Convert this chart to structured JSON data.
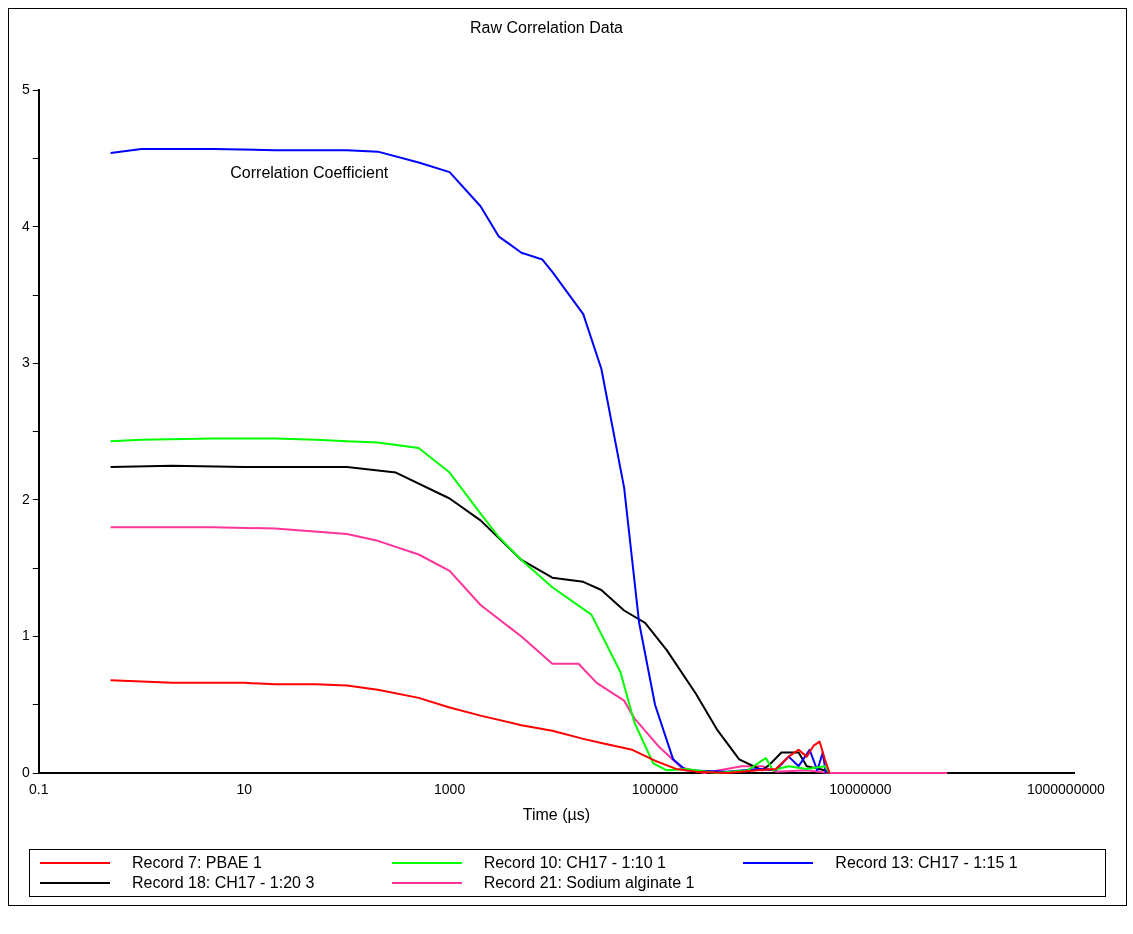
{
  "chart_data": {
    "type": "line",
    "title": "Raw Correlation Data",
    "xlabel": "Time (µs)",
    "ylabel": "Correlation Coefficient",
    "log": "x",
    "xlim": [
      0.1,
      1200000000
    ],
    "xticks": [
      0.1,
      10,
      1000,
      100000,
      10000000,
      1000000000
    ],
    "ylim": [
      0,
      5
    ],
    "yticks": [
      0,
      {
        "value": 0.5,
        "label": null
      },
      1,
      {
        "value": 1.5,
        "label": null
      },
      2,
      {
        "value": 2.5,
        "label": null
      },
      3,
      {
        "value": 3.5,
        "label": null
      },
      4,
      {
        "value": 4.5,
        "label": null
      },
      5
    ],
    "grid": false,
    "legend": "bottom",
    "marker": "none",
    "line_style": "solid",
    "series": [
      {
        "name": "Record 7: PBAE  1",
        "color": "#ff0000",
        "x": [
          0.5,
          1,
          2,
          5,
          10,
          20,
          50,
          100,
          200,
          500,
          1000,
          2000,
          5000,
          10000,
          20000,
          30000,
          60000,
          100000,
          160000,
          250000,
          500000,
          1000000,
          1500000,
          2000000,
          2500000,
          3000000,
          3500000,
          4000000,
          4500000,
          5000000
        ],
        "values": [
          0.68,
          0.67,
          0.66,
          0.66,
          0.66,
          0.65,
          0.65,
          0.64,
          0.61,
          0.55,
          0.48,
          0.42,
          0.35,
          0.31,
          0.25,
          0.22,
          0.17,
          0.09,
          0.03,
          0.01,
          0,
          0.02,
          0.03,
          0.12,
          0.17,
          0.12,
          0.2,
          0.23,
          0.1,
          0
        ]
      },
      {
        "name": "Record 10: CH17 - 1:10 1",
        "color": "#00ff00",
        "x": [
          0.5,
          1,
          5,
          20,
          50,
          100,
          200,
          500,
          1000,
          2000,
          3000,
          5000,
          10000,
          24000,
          46000,
          63000,
          96000,
          130000,
          200000,
          400000,
          800000,
          1200000,
          1400000,
          2000000,
          3000000,
          4500000,
          5000000
        ],
        "values": [
          2.43,
          2.44,
          2.45,
          2.45,
          2.44,
          2.43,
          2.42,
          2.38,
          2.2,
          1.9,
          1.73,
          1.56,
          1.36,
          1.16,
          0.74,
          0.37,
          0.07,
          0.02,
          0.03,
          0,
          0.02,
          0.11,
          0.02,
          0.05,
          0.03,
          0.05,
          0
        ]
      },
      {
        "name": "Record 13: CH17 - 1:15 1",
        "color": "#0000ff",
        "x": [
          0.5,
          1,
          5,
          20,
          100,
          200,
          500,
          1000,
          2000,
          3000,
          5000,
          8000,
          10000,
          20000,
          30000,
          50000,
          70000,
          100000,
          150000,
          200000,
          500000,
          1000000,
          1500000,
          2000000,
          2500000,
          3200000,
          3800000,
          4300000,
          4600000
        ],
        "values": [
          4.54,
          4.57,
          4.57,
          4.56,
          4.56,
          4.55,
          4.47,
          4.4,
          4.15,
          3.93,
          3.81,
          3.76,
          3.67,
          3.36,
          2.96,
          2.09,
          1.1,
          0.5,
          0.1,
          0.02,
          0.01,
          0.03,
          0.02,
          0.12,
          0.05,
          0.17,
          0.02,
          0.15,
          0
        ]
      },
      {
        "name": "Record 18: CH17 - 1:20 3",
        "color": "#000000",
        "x": [
          0.5,
          2,
          10,
          100,
          300,
          1000,
          2000,
          5000,
          10000,
          20000,
          30000,
          50000,
          80000,
          130000,
          250000,
          400000,
          660000,
          1100000,
          1300000,
          1700000,
          2500000,
          3000000,
          4500000,
          5000000
        ],
        "values": [
          2.24,
          2.25,
          2.24,
          2.24,
          2.2,
          2.01,
          1.85,
          1.56,
          1.43,
          1.4,
          1.34,
          1.19,
          1.1,
          0.9,
          0.58,
          0.32,
          0.1,
          0.02,
          0.06,
          0.15,
          0.15,
          0.05,
          0.02,
          0
        ]
      },
      {
        "name": "Record 21: Sodium alginate 1",
        "color": "#ff3399",
        "x": [
          0.5,
          5,
          20,
          100,
          200,
          500,
          1000,
          2000,
          5000,
          10000,
          18000,
          27000,
          50000,
          63000,
          110000,
          180000,
          300000,
          700000,
          1100000,
          1500000,
          3000000,
          5000000,
          70000000
        ],
        "values": [
          1.8,
          1.8,
          1.79,
          1.75,
          1.7,
          1.6,
          1.48,
          1.23,
          1.0,
          0.8,
          0.8,
          0.66,
          0.53,
          0.4,
          0.19,
          0.04,
          0,
          0.05,
          0.05,
          0.01,
          0.02,
          0,
          0
        ]
      }
    ]
  }
}
